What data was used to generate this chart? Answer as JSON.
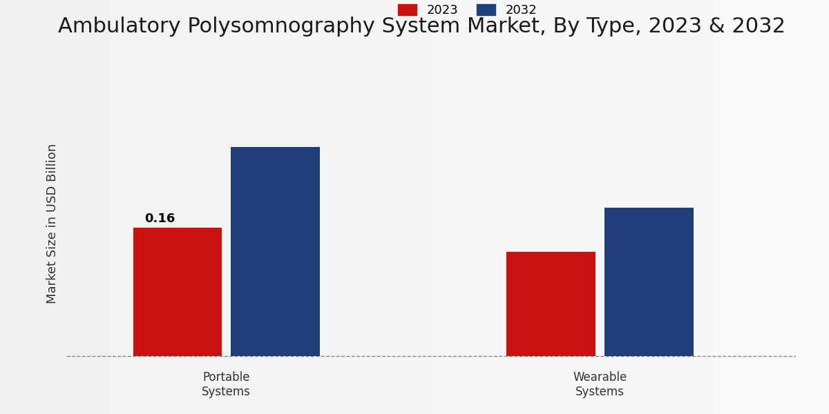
{
  "title": "Ambulatory Polysomnography System Market, By Type, 2023 & 2032",
  "ylabel": "Market Size in USD Billion",
  "categories": [
    "Portable\nSystems",
    "Wearable\nSystems"
  ],
  "series": {
    "2023": [
      0.16,
      0.13
    ],
    "2032": [
      0.26,
      0.185
    ]
  },
  "bar_colors": {
    "2023": "#cc1111",
    "2032": "#1e3f7a"
  },
  "annotation_2023_portable": "0.16",
  "bar_width": 0.25,
  "background_color_left": "#d0d0d0",
  "background_color_right": "#f0f0f0",
  "red_bar_color": "#cc1111",
  "title_fontsize": 22,
  "ylabel_fontsize": 13,
  "legend_fontsize": 13,
  "tick_fontsize": 12,
  "annotation_fontsize": 13,
  "ylim": [
    -0.01,
    0.34
  ],
  "xlim": [
    0.05,
    2.1
  ]
}
